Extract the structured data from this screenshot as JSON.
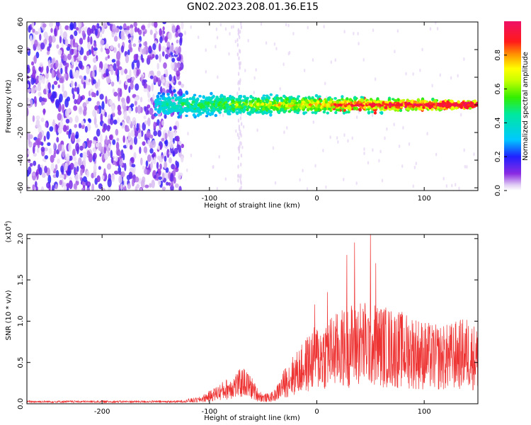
{
  "title": "GN02.2023.208.01.36.E15",
  "colors": {
    "accent": "#ee3333",
    "axis": "#000000"
  },
  "chart_data": [
    {
      "type": "heatmap",
      "title": "GN02.2023.208.01.36.E15",
      "xlabel": "Height of straight line (km)",
      "ylabel": "Frequency (Hz)",
      "xlim": [
        -270,
        150
      ],
      "ylim": [
        -62,
        60
      ],
      "x_ticks": [
        -200,
        -100,
        0,
        100
      ],
      "x_tick_labels": [
        "-200",
        "-100",
        "0",
        "100"
      ],
      "y_ticks": [
        -60,
        -40,
        -20,
        0,
        20,
        40,
        60
      ],
      "y_tick_labels": [
        "-60",
        "-40",
        "-20",
        "0",
        "20",
        "40",
        "60"
      ],
      "grid": false,
      "colorbar": {
        "label": "Normalized spectral amplitude",
        "range": [
          0,
          1
        ],
        "ticks": [
          0,
          0.2,
          0.4,
          0.6,
          0.8
        ],
        "tick_labels": [
          "0.0",
          "0.2",
          "0.4",
          "0.6",
          "0.8"
        ],
        "colormap": "rainbow (white-violet-blue-cyan-green-yellow-orange-red-magenta)"
      },
      "features": {
        "broadband_noise_region_x": [
          -270,
          -125
        ],
        "narrow_band_start_x": -150,
        "narrow_band_center_freq": 0,
        "narrow_band_halfwidth_at_start": 9,
        "narrow_band_halfwidth_at_end": 3,
        "band_peak_amplitude_near_end": 0.85
      }
    },
    {
      "type": "line",
      "xlabel": "Height of straight line (km)",
      "ylabel": "SNR (10 * v/v)",
      "y_multiplier": "(x10^4)",
      "xlim": [
        -270,
        150
      ],
      "ylim": [
        0,
        2.05
      ],
      "x_ticks": [
        -200,
        -100,
        0,
        100
      ],
      "x_tick_labels": [
        "-200",
        "-100",
        "0",
        "100"
      ],
      "y_ticks": [
        0,
        0.5,
        1.0,
        1.5,
        2.0
      ],
      "y_tick_labels": [
        "0.0",
        "0.5",
        "1.0",
        "1.5",
        "2.0"
      ],
      "grid": false,
      "series": [
        {
          "color": "#ee3333",
          "envelope_x": [
            -270,
            -200,
            -130,
            -110,
            -100,
            -90,
            -80,
            -75,
            -70,
            -65,
            -60,
            -55,
            -50,
            -45,
            -40,
            -35,
            -30,
            -25,
            -20,
            -15,
            -10,
            -5,
            0,
            10,
            20,
            30,
            40,
            50,
            60,
            70,
            80,
            90,
            100,
            110,
            120,
            130,
            140,
            150
          ],
          "envelope_y": [
            0.03,
            0.03,
            0.03,
            0.05,
            0.1,
            0.16,
            0.22,
            0.25,
            0.28,
            0.26,
            0.2,
            0.12,
            0.08,
            0.08,
            0.1,
            0.18,
            0.28,
            0.35,
            0.4,
            0.45,
            0.52,
            0.58,
            0.62,
            0.68,
            0.72,
            0.78,
            0.82,
            0.8,
            0.78,
            0.75,
            0.72,
            0.7,
            0.65,
            0.62,
            0.62,
            0.65,
            0.68,
            0.6
          ],
          "peaks_x": [
            -68,
            -2,
            10,
            28,
            35,
            50,
            55
          ],
          "peaks_y": [
            0.42,
            1.2,
            1.35,
            1.8,
            1.95,
            2.05,
            1.7
          ]
        }
      ]
    }
  ]
}
